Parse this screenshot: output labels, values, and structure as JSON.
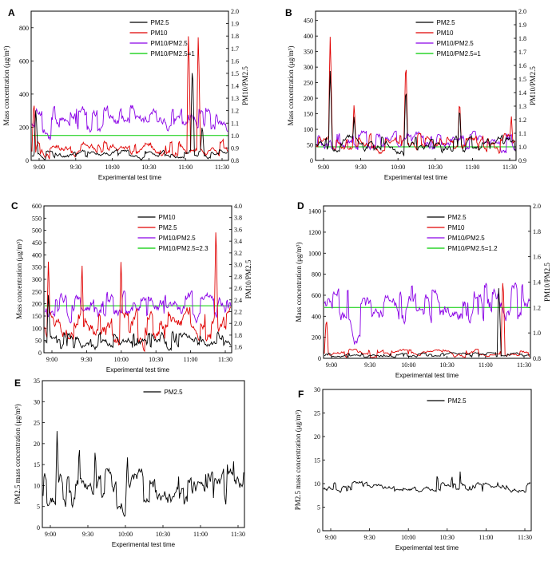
{
  "chart_data": [
    {
      "type": "line",
      "panel": "A",
      "xlabel": "Experimental test time",
      "ylabel": "Mass concentration (μg/m³)",
      "y2label": "PM10/PM2.5",
      "x_ticks": [
        "9:00",
        "9:30",
        "10:00",
        "10:30",
        "11:00",
        "11:30"
      ],
      "ylim": [
        0,
        900
      ],
      "y_ticks": [
        0,
        200,
        400,
        600,
        800
      ],
      "y2lim": [
        0.8,
        2.0
      ],
      "y2_ticks": [
        0.8,
        0.9,
        1.0,
        1.1,
        1.2,
        1.3,
        1.4,
        1.5,
        1.6,
        1.7,
        1.8,
        1.9,
        2.0
      ],
      "legend_position": "top-right",
      "series": [
        {
          "name": "PM2.5",
          "axis": "left",
          "color": "#000000",
          "base": 35,
          "noise": 30,
          "spikes": [
            [
              0.02,
              320
            ],
            [
              0.82,
              600
            ],
            [
              0.87,
              220
            ]
          ]
        },
        {
          "name": "PM10",
          "axis": "left",
          "color": "#e00000",
          "base": 60,
          "noise": 55,
          "spikes": [
            [
              0.01,
              380
            ],
            [
              0.8,
              800
            ],
            [
              0.85,
              780
            ]
          ]
        },
        {
          "name": "PM10/PM2.5",
          "axis": "right",
          "color": "#8a00e6",
          "base": 1.1,
          "noise": 0.12
        },
        {
          "name": "PM10/PM2.5=1",
          "axis": "right",
          "color": "#00cc00",
          "constant": 1.0
        }
      ]
    },
    {
      "type": "line",
      "panel": "B",
      "xlabel": "Experimental test time",
      "ylabel": "Mass concentration (μg/m³)",
      "y2label": "PM10/PM2.5",
      "x_ticks": [
        "9:00",
        "9:30",
        "10:00",
        "10:30",
        "11:00",
        "11:30"
      ],
      "ylim": [
        0,
        480
      ],
      "y_ticks": [
        0,
        50,
        100,
        150,
        200,
        250,
        300,
        350,
        400,
        450
      ],
      "y2lim": [
        0.9,
        2.0
      ],
      "y2_ticks": [
        0.9,
        1.0,
        1.1,
        1.2,
        1.3,
        1.4,
        1.5,
        1.6,
        1.7,
        1.8,
        1.9,
        2.0
      ],
      "legend_position": "top-right",
      "series": [
        {
          "name": "PM2.5",
          "axis": "left",
          "color": "#000000",
          "base": 45,
          "noise": 30,
          "spikes": [
            [
              0.07,
              300
            ],
            [
              0.19,
              150
            ],
            [
              0.45,
              250
            ],
            [
              0.72,
              180
            ]
          ]
        },
        {
          "name": "PM10",
          "axis": "left",
          "color": "#e00000",
          "base": 50,
          "noise": 30,
          "spikes": [
            [
              0.07,
              415
            ],
            [
              0.19,
              190
            ],
            [
              0.45,
              340
            ],
            [
              0.72,
              205
            ],
            [
              0.98,
              150
            ]
          ]
        },
        {
          "name": "PM10/PM2.5",
          "axis": "right",
          "color": "#8a00e6",
          "base": 1.02,
          "noise": 0.08
        },
        {
          "name": "PM10/PM2.5=1",
          "axis": "right",
          "color": "#00cc00",
          "constant": 1.0
        }
      ]
    },
    {
      "type": "line",
      "panel": "C",
      "xlabel": "Experimental test time",
      "ylabel": "Mass concentration (μg/m³)",
      "y2label": "PM10/PM2.5",
      "x_ticks": [
        "9:00",
        "9:30",
        "10:00",
        "10:30",
        "11:00",
        "11:30"
      ],
      "ylim": [
        0,
        600
      ],
      "y_ticks": [
        0,
        50,
        100,
        150,
        200,
        250,
        300,
        350,
        400,
        450,
        500,
        550,
        600
      ],
      "y2lim": [
        1.5,
        4.0
      ],
      "y2_ticks": [
        1.6,
        1.8,
        2.0,
        2.2,
        2.4,
        2.6,
        2.8,
        3.0,
        3.2,
        3.4,
        3.6,
        3.8,
        4.0
      ],
      "legend_position": "top-right",
      "series": [
        {
          "name": "PM10",
          "axis": "left",
          "color": "#000000",
          "base": 40,
          "noise": 40,
          "spikes": [
            [
              0.02,
              250
            ]
          ]
        },
        {
          "name": "PM2.5",
          "axis": "left",
          "color": "#e00000",
          "base": 90,
          "noise": 80,
          "spikes": [
            [
              0.02,
              395
            ],
            [
              0.2,
              380
            ],
            [
              0.41,
              395
            ],
            [
              0.92,
              540
            ]
          ]
        },
        {
          "name": "PM10/PM2.5",
          "axis": "right",
          "color": "#8a00e6",
          "base": 2.25,
          "noise": 0.25
        },
        {
          "name": "PM10/PM2.5=2.3",
          "axis": "right",
          "color": "#00cc00",
          "constant": 2.3
        }
      ]
    },
    {
      "type": "line",
      "panel": "D",
      "xlabel": "Experimental test time",
      "ylabel": "Mass concentration (μg/m³)",
      "y2label": "PM10/PM2.5",
      "x_ticks": [
        "9:00",
        "9:30",
        "10:00",
        "10:30",
        "11:00",
        "11:30"
      ],
      "ylim": [
        0,
        1450
      ],
      "y_ticks": [
        0,
        200,
        400,
        600,
        800,
        1000,
        1200,
        1400
      ],
      "y2lim": [
        0.8,
        2.0
      ],
      "y2_ticks": [
        0.8,
        1.0,
        1.2,
        1.4,
        1.6,
        1.8,
        2.0
      ],
      "legend_position": "top-right",
      "series": [
        {
          "name": "PM2.5",
          "axis": "left",
          "color": "#000000",
          "base": 25,
          "noise": 25,
          "spikes": [
            [
              0.85,
              700
            ]
          ]
        },
        {
          "name": "PM10",
          "axis": "left",
          "color": "#e00000",
          "base": 40,
          "noise": 40,
          "spikes": [
            [
              0.01,
              400
            ],
            [
              0.87,
              800
            ]
          ]
        },
        {
          "name": "PM10/PM2.5",
          "axis": "right",
          "color": "#8a00e6",
          "base": 1.2,
          "noise": 0.17
        },
        {
          "name": "PM10/PM2.5=1.2",
          "axis": "right",
          "color": "#00cc00",
          "constant": 1.2
        }
      ]
    },
    {
      "type": "line",
      "panel": "E",
      "xlabel": "Experimental test time",
      "ylabel": "PM2.5 mass concentration (μg/m³)",
      "x_ticks": [
        "9:00",
        "9:30",
        "10:00",
        "10:30",
        "11:00",
        "11:30"
      ],
      "ylim": [
        0,
        35
      ],
      "y_ticks": [
        0,
        5,
        10,
        15,
        20,
        25,
        30,
        35
      ],
      "legend_position": "top-right",
      "series": [
        {
          "name": "PM2.5",
          "axis": "left",
          "color": "#000000",
          "base": 8,
          "noise": 5,
          "spikes": [
            [
              0.07,
              24
            ],
            [
              0.18,
              21
            ],
            [
              0.26,
              20
            ],
            [
              0.42,
              18
            ],
            [
              0.92,
              16.5
            ],
            [
              0.95,
              16
            ]
          ]
        }
      ]
    },
    {
      "type": "line",
      "panel": "F",
      "xlabel": "Experimental test time",
      "ylabel": "PM2.5 mass concentration (μg/m³)",
      "x_ticks": [
        "9:00",
        "9:30",
        "10:00",
        "10:30",
        "11:00",
        "11:30"
      ],
      "ylim": [
        0,
        30
      ],
      "y_ticks": [
        0,
        5,
        10,
        15,
        20,
        25,
        30
      ],
      "legend_position": "top-right",
      "series": [
        {
          "name": "PM2.5",
          "axis": "left",
          "color": "#000000",
          "base": 9,
          "noise": 1.2,
          "spikes": [
            [
              0.55,
              13.5
            ],
            [
              0.62,
              13.2
            ],
            [
              0.66,
              12.8
            ]
          ]
        }
      ]
    }
  ]
}
